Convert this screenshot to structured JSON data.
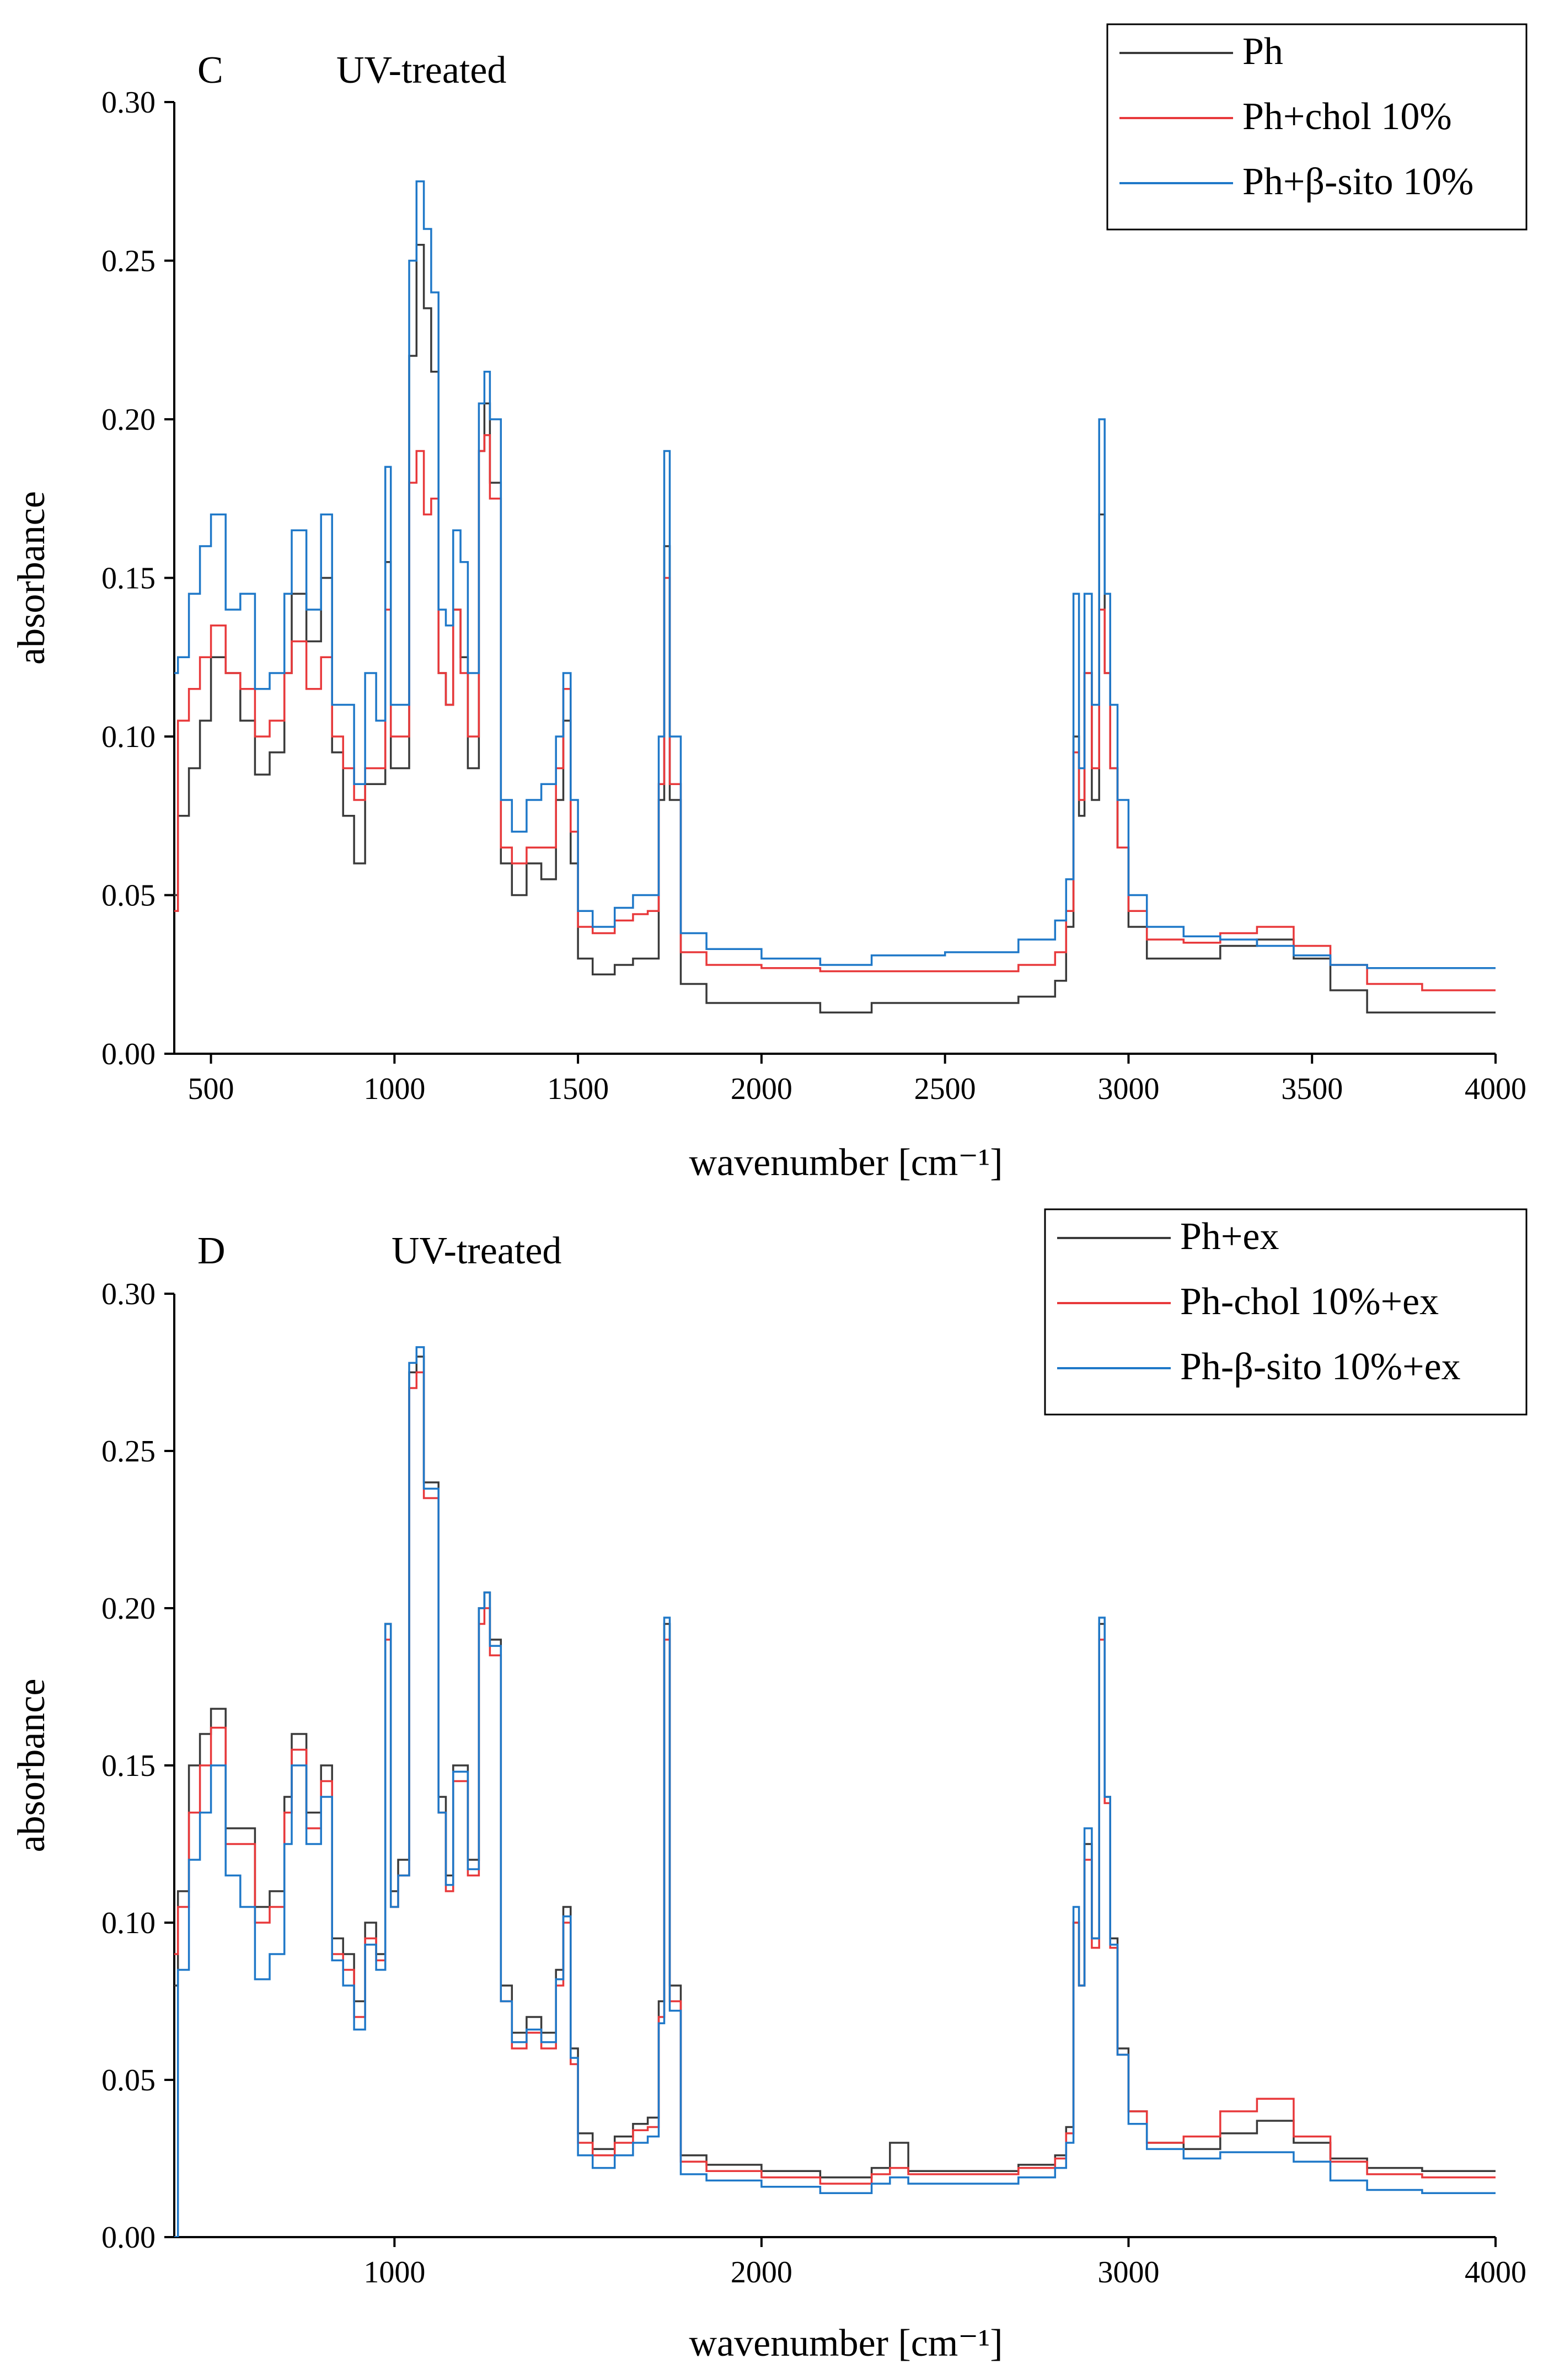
{
  "chart_data": [
    {
      "type": "line",
      "panel_label": "C",
      "title": "UV-treated",
      "xlabel": "wavenumber [cm⁻¹]",
      "ylabel": "absorbance",
      "xlim": [
        400,
        4000
      ],
      "ylim": [
        0,
        0.3
      ],
      "xticks": [
        500,
        1000,
        1500,
        2000,
        2500,
        3000,
        3500,
        4000
      ],
      "xtick_labels": [
        "500",
        "1000",
        "1500",
        "2000",
        "2500",
        "3000",
        "3500",
        "4000"
      ],
      "yticks": [
        0,
        0.05,
        0.1,
        0.15,
        0.2,
        0.25,
        0.3
      ],
      "ytick_labels": [
        "0.00",
        "0.05",
        "0.10",
        "0.15",
        "0.20",
        "0.25",
        "0.30"
      ],
      "legend_position": "top-right",
      "series": [
        {
          "name": "Ph",
          "color": "#3a3a3a",
          "x": [
            400,
            410,
            440,
            470,
            500,
            540,
            580,
            620,
            660,
            700,
            720,
            760,
            800,
            830,
            860,
            890,
            920,
            950,
            975,
            990,
            1010,
            1040,
            1060,
            1080,
            1100,
            1120,
            1140,
            1160,
            1180,
            1200,
            1230,
            1245,
            1260,
            1290,
            1320,
            1360,
            1400,
            1440,
            1460,
            1480,
            1500,
            1540,
            1600,
            1650,
            1690,
            1720,
            1735,
            1750,
            1780,
            1850,
            2000,
            2160,
            2300,
            2500,
            2700,
            2800,
            2830,
            2850,
            2865,
            2880,
            2900,
            2920,
            2935,
            2950,
            2970,
            3000,
            3050,
            3150,
            3250,
            3350,
            3450,
            3550,
            3650,
            3800,
            4000
          ],
          "values": [
            0.05,
            0.075,
            0.09,
            0.105,
            0.125,
            0.12,
            0.105,
            0.088,
            0.095,
            0.12,
            0.145,
            0.13,
            0.15,
            0.095,
            0.075,
            0.06,
            0.085,
            0.085,
            0.155,
            0.09,
            0.09,
            0.22,
            0.255,
            0.235,
            0.215,
            0.12,
            0.11,
            0.14,
            0.125,
            0.09,
            0.19,
            0.205,
            0.18,
            0.06,
            0.05,
            0.06,
            0.055,
            0.08,
            0.105,
            0.06,
            0.03,
            0.025,
            0.028,
            0.03,
            0.03,
            0.08,
            0.16,
            0.08,
            0.022,
            0.016,
            0.016,
            0.013,
            0.016,
            0.016,
            0.018,
            0.023,
            0.04,
            0.1,
            0.075,
            0.12,
            0.08,
            0.17,
            0.12,
            0.09,
            0.065,
            0.04,
            0.03,
            0.03,
            0.034,
            0.036,
            0.03,
            0.02,
            0.013,
            0.013,
            0.013
          ]
        },
        {
          "name": "Ph+chol 10%",
          "color": "#e8393b",
          "x": [
            400,
            410,
            440,
            470,
            500,
            540,
            580,
            620,
            660,
            700,
            720,
            760,
            800,
            830,
            860,
            890,
            920,
            950,
            975,
            990,
            1010,
            1040,
            1060,
            1080,
            1100,
            1120,
            1140,
            1160,
            1180,
            1200,
            1230,
            1245,
            1260,
            1290,
            1320,
            1360,
            1400,
            1440,
            1460,
            1480,
            1500,
            1540,
            1600,
            1650,
            1690,
            1720,
            1735,
            1750,
            1780,
            1850,
            2000,
            2160,
            2300,
            2500,
            2700,
            2800,
            2830,
            2850,
            2865,
            2880,
            2900,
            2920,
            2935,
            2950,
            2970,
            3000,
            3050,
            3150,
            3250,
            3350,
            3450,
            3550,
            3650,
            3800,
            4000
          ],
          "values": [
            0.045,
            0.105,
            0.115,
            0.125,
            0.135,
            0.12,
            0.115,
            0.1,
            0.105,
            0.12,
            0.13,
            0.115,
            0.125,
            0.1,
            0.09,
            0.08,
            0.09,
            0.09,
            0.14,
            0.1,
            0.1,
            0.18,
            0.19,
            0.17,
            0.175,
            0.12,
            0.11,
            0.14,
            0.12,
            0.1,
            0.19,
            0.195,
            0.175,
            0.065,
            0.06,
            0.065,
            0.065,
            0.09,
            0.115,
            0.07,
            0.04,
            0.038,
            0.042,
            0.044,
            0.045,
            0.085,
            0.15,
            0.085,
            0.032,
            0.028,
            0.027,
            0.026,
            0.026,
            0.026,
            0.028,
            0.032,
            0.045,
            0.095,
            0.08,
            0.12,
            0.09,
            0.14,
            0.12,
            0.09,
            0.065,
            0.045,
            0.036,
            0.035,
            0.038,
            0.04,
            0.034,
            0.028,
            0.022,
            0.02,
            0.02
          ]
        },
        {
          "name": "Ph+β-sito 10%",
          "color": "#1f78c8",
          "x": [
            400,
            410,
            440,
            470,
            500,
            540,
            580,
            620,
            660,
            700,
            720,
            760,
            800,
            830,
            860,
            890,
            920,
            950,
            975,
            990,
            1010,
            1040,
            1060,
            1080,
            1100,
            1120,
            1140,
            1160,
            1180,
            1200,
            1230,
            1245,
            1260,
            1290,
            1320,
            1360,
            1400,
            1440,
            1460,
            1480,
            1500,
            1540,
            1600,
            1650,
            1690,
            1720,
            1735,
            1750,
            1780,
            1850,
            2000,
            2160,
            2300,
            2500,
            2700,
            2800,
            2830,
            2850,
            2865,
            2880,
            2900,
            2920,
            2935,
            2950,
            2970,
            3000,
            3050,
            3150,
            3250,
            3350,
            3450,
            3550,
            3650,
            3800,
            4000
          ],
          "values": [
            0.12,
            0.125,
            0.145,
            0.16,
            0.17,
            0.14,
            0.145,
            0.115,
            0.12,
            0.145,
            0.165,
            0.14,
            0.17,
            0.11,
            0.11,
            0.085,
            0.12,
            0.105,
            0.185,
            0.11,
            0.11,
            0.25,
            0.275,
            0.26,
            0.24,
            0.14,
            0.135,
            0.165,
            0.155,
            0.12,
            0.205,
            0.215,
            0.2,
            0.08,
            0.07,
            0.08,
            0.085,
            0.1,
            0.12,
            0.08,
            0.045,
            0.04,
            0.046,
            0.05,
            0.05,
            0.1,
            0.19,
            0.1,
            0.038,
            0.033,
            0.03,
            0.028,
            0.031,
            0.032,
            0.036,
            0.042,
            0.055,
            0.145,
            0.09,
            0.145,
            0.11,
            0.2,
            0.145,
            0.11,
            0.08,
            0.05,
            0.04,
            0.037,
            0.036,
            0.034,
            0.031,
            0.028,
            0.027,
            0.027,
            0.027
          ]
        }
      ]
    },
    {
      "type": "line",
      "panel_label": "D",
      "title": "UV-treated",
      "xlabel": "wavenumber [cm⁻¹]",
      "ylabel": "absorbance",
      "xlim": [
        400,
        4000
      ],
      "ylim": [
        0,
        0.3
      ],
      "xticks": [
        1000,
        2000,
        3000,
        4000
      ],
      "xtick_labels": [
        "1000",
        "2000",
        "3000",
        "4000"
      ],
      "yticks": [
        0,
        0.05,
        0.1,
        0.15,
        0.2,
        0.25,
        0.3
      ],
      "ytick_labels": [
        "0.00",
        "0.05",
        "0.10",
        "0.15",
        "0.20",
        "0.25",
        "0.30"
      ],
      "legend_position": "top-right",
      "series": [
        {
          "name": "Ph+ex",
          "color": "#3a3a3a",
          "x": [
            400,
            410,
            440,
            470,
            500,
            540,
            580,
            620,
            660,
            700,
            720,
            760,
            800,
            830,
            860,
            890,
            920,
            950,
            975,
            990,
            1010,
            1040,
            1060,
            1080,
            1100,
            1120,
            1140,
            1160,
            1180,
            1200,
            1230,
            1245,
            1260,
            1290,
            1320,
            1360,
            1400,
            1440,
            1460,
            1480,
            1500,
            1540,
            1600,
            1650,
            1690,
            1720,
            1735,
            1750,
            1780,
            1850,
            2000,
            2160,
            2300,
            2350,
            2400,
            2500,
            2700,
            2800,
            2830,
            2850,
            2865,
            2880,
            2900,
            2920,
            2935,
            2950,
            2970,
            3000,
            3050,
            3150,
            3250,
            3350,
            3450,
            3550,
            3650,
            3800,
            4000
          ],
          "values": [
            0.08,
            0.11,
            0.15,
            0.16,
            0.168,
            0.13,
            0.13,
            0.105,
            0.11,
            0.14,
            0.16,
            0.135,
            0.15,
            0.095,
            0.09,
            0.075,
            0.1,
            0.09,
            0.195,
            0.11,
            0.12,
            0.275,
            0.28,
            0.24,
            0.24,
            0.14,
            0.115,
            0.15,
            0.15,
            0.12,
            0.2,
            0.205,
            0.19,
            0.08,
            0.065,
            0.07,
            0.065,
            0.085,
            0.105,
            0.06,
            0.033,
            0.028,
            0.032,
            0.036,
            0.038,
            0.075,
            0.195,
            0.08,
            0.026,
            0.023,
            0.021,
            0.019,
            0.022,
            0.03,
            0.021,
            0.021,
            0.023,
            0.026,
            0.035,
            0.1,
            0.08,
            0.125,
            0.095,
            0.195,
            0.14,
            0.095,
            0.06,
            0.04,
            0.03,
            0.028,
            0.033,
            0.037,
            0.03,
            0.025,
            0.022,
            0.021,
            0.021
          ]
        },
        {
          "name": "Ph-chol 10%+ex",
          "color": "#e8393b",
          "x": [
            400,
            410,
            440,
            470,
            500,
            540,
            580,
            620,
            660,
            700,
            720,
            760,
            800,
            830,
            860,
            890,
            920,
            950,
            975,
            990,
            1010,
            1040,
            1060,
            1080,
            1100,
            1120,
            1140,
            1160,
            1180,
            1200,
            1230,
            1245,
            1260,
            1290,
            1320,
            1360,
            1400,
            1440,
            1460,
            1480,
            1500,
            1540,
            1600,
            1650,
            1690,
            1720,
            1735,
            1750,
            1780,
            1850,
            2000,
            2160,
            2300,
            2350,
            2400,
            2500,
            2700,
            2800,
            2830,
            2850,
            2865,
            2880,
            2900,
            2920,
            2935,
            2950,
            2970,
            3000,
            3050,
            3150,
            3250,
            3350,
            3450,
            3550,
            3650,
            3800,
            4000
          ],
          "values": [
            0.09,
            0.105,
            0.135,
            0.15,
            0.162,
            0.125,
            0.125,
            0.1,
            0.105,
            0.135,
            0.155,
            0.13,
            0.145,
            0.09,
            0.085,
            0.07,
            0.095,
            0.088,
            0.19,
            0.105,
            0.115,
            0.27,
            0.275,
            0.235,
            0.235,
            0.135,
            0.11,
            0.145,
            0.145,
            0.115,
            0.195,
            0.2,
            0.185,
            0.075,
            0.06,
            0.065,
            0.06,
            0.08,
            0.1,
            0.055,
            0.03,
            0.026,
            0.03,
            0.034,
            0.035,
            0.07,
            0.19,
            0.075,
            0.024,
            0.021,
            0.019,
            0.017,
            0.02,
            0.022,
            0.02,
            0.02,
            0.022,
            0.025,
            0.033,
            0.1,
            0.08,
            0.12,
            0.092,
            0.19,
            0.138,
            0.092,
            0.058,
            0.04,
            0.03,
            0.032,
            0.04,
            0.044,
            0.032,
            0.024,
            0.02,
            0.019,
            0.019
          ]
        },
        {
          "name": "Ph-β-sito 10%+ex",
          "color": "#1f78c8",
          "x": [
            400,
            410,
            440,
            470,
            500,
            540,
            580,
            620,
            660,
            700,
            720,
            760,
            800,
            830,
            860,
            890,
            920,
            950,
            975,
            990,
            1010,
            1040,
            1060,
            1080,
            1100,
            1120,
            1140,
            1160,
            1180,
            1200,
            1230,
            1245,
            1260,
            1290,
            1320,
            1360,
            1400,
            1440,
            1460,
            1480,
            1500,
            1540,
            1600,
            1650,
            1690,
            1720,
            1735,
            1750,
            1780,
            1850,
            2000,
            2160,
            2300,
            2350,
            2400,
            2500,
            2700,
            2800,
            2830,
            2850,
            2865,
            2880,
            2900,
            2920,
            2935,
            2950,
            2970,
            3000,
            3050,
            3150,
            3250,
            3350,
            3450,
            3550,
            3650,
            3800,
            4000
          ],
          "values": [
            0.0,
            0.085,
            0.12,
            0.135,
            0.15,
            0.115,
            0.105,
            0.082,
            0.09,
            0.125,
            0.15,
            0.125,
            0.14,
            0.088,
            0.08,
            0.066,
            0.093,
            0.085,
            0.195,
            0.105,
            0.115,
            0.278,
            0.283,
            0.238,
            0.238,
            0.135,
            0.112,
            0.148,
            0.148,
            0.117,
            0.2,
            0.205,
            0.188,
            0.075,
            0.062,
            0.066,
            0.062,
            0.082,
            0.102,
            0.057,
            0.026,
            0.022,
            0.026,
            0.03,
            0.032,
            0.068,
            0.197,
            0.072,
            0.02,
            0.018,
            0.016,
            0.014,
            0.017,
            0.019,
            0.017,
            0.017,
            0.019,
            0.022,
            0.03,
            0.105,
            0.08,
            0.13,
            0.095,
            0.197,
            0.14,
            0.093,
            0.058,
            0.036,
            0.028,
            0.025,
            0.027,
            0.027,
            0.024,
            0.018,
            0.015,
            0.014,
            0.014
          ]
        }
      ]
    }
  ]
}
